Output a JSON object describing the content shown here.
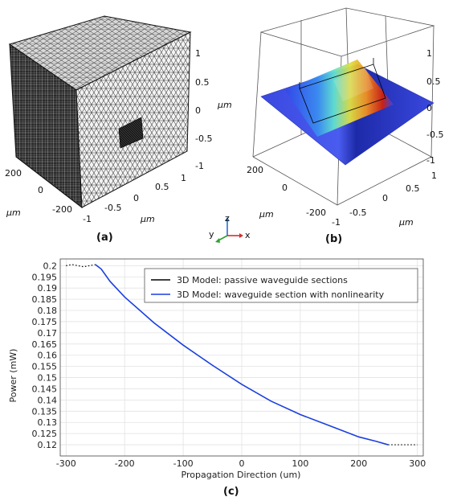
{
  "panel_a": {
    "label": "(a)",
    "right_ticks": [
      "1",
      "0.5",
      "0",
      "-0.5",
      "-1"
    ],
    "right_unit": "µm",
    "bottom_left_ticks": [
      "200",
      "0",
      "-200"
    ],
    "bottom_left_unit": "µm",
    "bottom_right_ticks": [
      "1",
      "0.5",
      "0",
      "-0.5",
      "-1"
    ],
    "bottom_right_unit": "µm"
  },
  "panel_b": {
    "label": "(b)",
    "right_ticks": [
      "1",
      "0.5",
      "0",
      "-0.5",
      "-1"
    ],
    "right_unit": "µm",
    "bottom_left_ticks": [
      "200",
      "0",
      "-200"
    ],
    "bottom_left_unit": "µm",
    "bottom_right_ticks": [
      "1",
      "0.5",
      "0",
      "-0.5",
      "-1"
    ],
    "bottom_right_unit": "µm"
  },
  "axis_triad": {
    "z": "z",
    "y": "y",
    "x": "x"
  },
  "panel_c": {
    "label": "(c)"
  },
  "chart_data": {
    "type": "line",
    "title": "",
    "xlabel": "Propagation Direction (um)",
    "ylabel": "Power (mW)",
    "xlim": [
      -310,
      310
    ],
    "ylim": [
      0.115,
      0.203
    ],
    "xticks": [
      -300,
      -200,
      -100,
      0,
      100,
      200,
      300
    ],
    "yticks": [
      0.12,
      0.125,
      0.13,
      0.135,
      0.14,
      0.145,
      0.15,
      0.155,
      0.16,
      0.165,
      0.17,
      0.175,
      0.18,
      0.185,
      0.19,
      0.195,
      0.2
    ],
    "grid": true,
    "legend_position": "top-right",
    "series": [
      {
        "name": "3D Model: passive waveguide sections",
        "color": "#000000",
        "style": "dotted",
        "x": [
          -300,
          -290,
          -280,
          -270,
          -260,
          -250
        ],
        "y": [
          0.2,
          0.2005,
          0.2,
          0.1995,
          0.2,
          0.2005
        ]
      },
      {
        "name": "3D Model: passive waveguide sections",
        "color": "#000000",
        "style": "dotted",
        "legend": false,
        "x": [
          250,
          260,
          270,
          280,
          290,
          300
        ],
        "y": [
          0.12,
          0.12,
          0.12,
          0.12,
          0.12,
          0.12
        ]
      },
      {
        "name": "3D Model: waveguide section with nonlinearity",
        "color": "#1a3fe0",
        "style": "solid",
        "x": [
          -250,
          -240,
          -225,
          -200,
          -150,
          -100,
          -50,
          0,
          50,
          100,
          150,
          200,
          230,
          250
        ],
        "y": [
          0.2005,
          0.1985,
          0.193,
          0.186,
          0.1745,
          0.1645,
          0.1555,
          0.147,
          0.1395,
          0.1335,
          0.1285,
          0.1235,
          0.1215,
          0.12
        ]
      }
    ]
  }
}
